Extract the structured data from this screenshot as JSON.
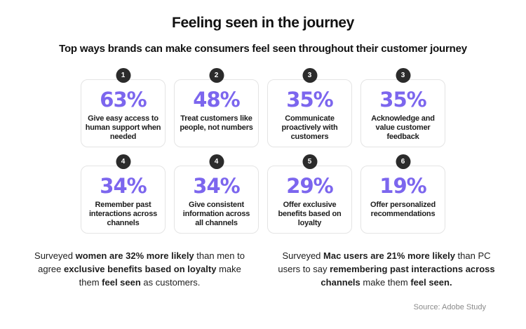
{
  "colors": {
    "accent": "#7C66EE",
    "badge": "#2B2B2B",
    "card-border": "#E4E4E4",
    "text": "#161616",
    "muted": "#8A8A8A"
  },
  "header": {
    "title": "Feeling seen in the journey",
    "subtitle": "Top ways brands can make consumers feel seen throughout their customer journey"
  },
  "cards": [
    {
      "rank": "1",
      "value": "63%",
      "label": "Give easy access to human support when needed"
    },
    {
      "rank": "2",
      "value": "48%",
      "label": "Treat customers like people, not numbers"
    },
    {
      "rank": "3",
      "value": "35%",
      "label": "Communicate proactively with customers"
    },
    {
      "rank": "3",
      "value": "35%",
      "label": "Acknowledge and value customer feedback"
    },
    {
      "rank": "4",
      "value": "34%",
      "label": "Remember past interactions across channels"
    },
    {
      "rank": "4",
      "value": "34%",
      "label": "Give consistent information across all channels"
    },
    {
      "rank": "5",
      "value": "29%",
      "label": "Offer exclusive benefits based on loyalty"
    },
    {
      "rank": "6",
      "value": "19%",
      "label": "Offer personalized recommendations"
    }
  ],
  "footnotes": [
    {
      "segments": [
        {
          "text": "Surveyed ",
          "bold": false
        },
        {
          "text": "women are 32% more likely",
          "bold": true
        },
        {
          "text": " than men to agree ",
          "bold": false
        },
        {
          "text": "exclusive benefits based on loyalty",
          "bold": true
        },
        {
          "text": " make them ",
          "bold": false
        },
        {
          "text": "feel seen",
          "bold": true
        },
        {
          "text": " as customers.",
          "bold": false
        }
      ]
    },
    {
      "segments": [
        {
          "text": "Surveyed ",
          "bold": false
        },
        {
          "text": "Mac users are 21% more likely",
          "bold": true
        },
        {
          "text": " than PC users to say ",
          "bold": false
        },
        {
          "text": "remembering past interactions across channels",
          "bold": true
        },
        {
          "text": " make them ",
          "bold": false
        },
        {
          "text": "feel seen.",
          "bold": true
        }
      ]
    }
  ],
  "source": "Source: Adobe Study",
  "chart_data": {
    "type": "bar",
    "title": "Feeling seen in the journey",
    "subtitle": "Top ways brands can make consumers feel seen throughout their customer journey",
    "categories": [
      "Give easy access to human support when needed",
      "Treat customers like people, not numbers",
      "Communicate proactively with customers",
      "Acknowledge and value customer feedback",
      "Remember past interactions across channels",
      "Give consistent information across all channels",
      "Offer exclusive benefits based on loyalty",
      "Offer personalized recommendations"
    ],
    "values": [
      63,
      48,
      35,
      35,
      34,
      34,
      29,
      19
    ],
    "ranks": [
      1,
      2,
      3,
      3,
      4,
      4,
      5,
      6
    ],
    "unit": "%",
    "layout": "2x4 stat-card grid, ranked badges, no axes or gridlines",
    "annotations": [
      "Surveyed women are 32% more likely than men to agree exclusive benefits based on loyalty make them feel seen as customers.",
      "Surveyed Mac users are 21% more likely than PC users to say remembering past interactions across channels make them feel seen."
    ],
    "source": "Source: Adobe Study"
  }
}
